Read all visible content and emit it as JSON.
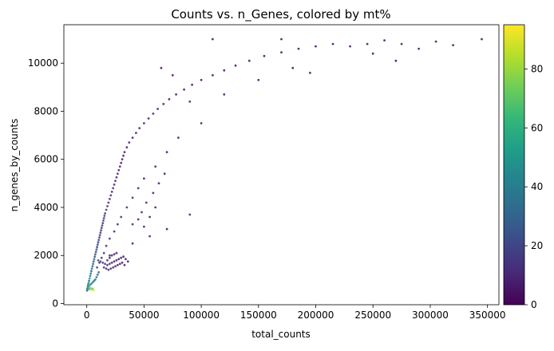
{
  "chart_data": {
    "type": "scatter",
    "title": "Counts vs. n_Genes, colored by mt%",
    "xlabel": "total_counts",
    "ylabel": "n_genes_by_counts",
    "xlim": [
      -20000,
      360000
    ],
    "ylim": [
      -50,
      11600
    ],
    "xticks": [
      0,
      50000,
      100000,
      150000,
      200000,
      250000,
      300000,
      350000
    ],
    "xtick_labels": [
      "0",
      "50000",
      "100000",
      "150000",
      "200000",
      "250000",
      "300000",
      "350000"
    ],
    "yticks": [
      0,
      2000,
      4000,
      6000,
      8000,
      10000
    ],
    "ytick_labels": [
      "0",
      "2000",
      "4000",
      "6000",
      "8000",
      "10000"
    ],
    "colorbar": {
      "label": "",
      "range": [
        0,
        95
      ],
      "ticks": [
        0,
        20,
        40,
        60,
        80
      ],
      "tick_labels": [
        "0",
        "20",
        "40",
        "60",
        "80"
      ],
      "colormap": "viridis",
      "colors": [
        "#440154",
        "#482878",
        "#3e4989",
        "#31688e",
        "#26828e",
        "#1f9e89",
        "#35b779",
        "#6ece58",
        "#b5de2b",
        "#fde725"
      ]
    },
    "grid": false,
    "legend": "none",
    "points": [
      [
        300,
        540,
        30
      ],
      [
        600,
        620,
        25
      ],
      [
        900,
        700,
        38
      ],
      [
        1200,
        780,
        28
      ],
      [
        1600,
        860,
        45
      ],
      [
        2000,
        950,
        32
      ],
      [
        2500,
        1050,
        50
      ],
      [
        3000,
        1150,
        35
      ],
      [
        3500,
        1250,
        40
      ],
      [
        4000,
        1350,
        30
      ],
      [
        4500,
        1450,
        42
      ],
      [
        5000,
        1550,
        28
      ],
      [
        5500,
        1650,
        36
      ],
      [
        6000,
        1750,
        26
      ],
      [
        6500,
        1850,
        33
      ],
      [
        7000,
        1950,
        24
      ],
      [
        7500,
        2050,
        30
      ],
      [
        8000,
        2150,
        22
      ],
      [
        8500,
        2250,
        28
      ],
      [
        9000,
        2350,
        20
      ],
      [
        9500,
        2450,
        25
      ],
      [
        10000,
        2550,
        18
      ],
      [
        10500,
        2650,
        22
      ],
      [
        11000,
        2750,
        17
      ],
      [
        11500,
        2850,
        20
      ],
      [
        12000,
        2950,
        16
      ],
      [
        12500,
        3050,
        18
      ],
      [
        13000,
        3150,
        15
      ],
      [
        13500,
        3250,
        17
      ],
      [
        14000,
        3350,
        14
      ],
      [
        14500,
        3450,
        16
      ],
      [
        15000,
        3550,
        13
      ],
      [
        15500,
        3650,
        15
      ],
      [
        16000,
        3750,
        12
      ],
      [
        17000,
        3900,
        13
      ],
      [
        18000,
        4050,
        12
      ],
      [
        19000,
        4200,
        11
      ],
      [
        20000,
        4350,
        12
      ],
      [
        21000,
        4500,
        11
      ],
      [
        22000,
        4650,
        10
      ],
      [
        23000,
        4800,
        11
      ],
      [
        24000,
        4950,
        10
      ],
      [
        25000,
        5100,
        10
      ],
      [
        26000,
        5250,
        9
      ],
      [
        27000,
        5400,
        10
      ],
      [
        28000,
        5550,
        9
      ],
      [
        29000,
        5700,
        9
      ],
      [
        30000,
        5850,
        9
      ],
      [
        31000,
        6000,
        8
      ],
      [
        32000,
        6150,
        9
      ],
      [
        33000,
        6300,
        8
      ],
      [
        35000,
        6500,
        8
      ],
      [
        37000,
        6700,
        8
      ],
      [
        40000,
        6900,
        7
      ],
      [
        43000,
        7100,
        7
      ],
      [
        46000,
        7300,
        7
      ],
      [
        50000,
        7500,
        7
      ],
      [
        54000,
        7700,
        6
      ],
      [
        58000,
        7900,
        6
      ],
      [
        62000,
        8100,
        6
      ],
      [
        67000,
        8300,
        6
      ],
      [
        72000,
        8500,
        5
      ],
      [
        78000,
        8700,
        5
      ],
      [
        85000,
        8900,
        5
      ],
      [
        92000,
        9100,
        5
      ],
      [
        100000,
        9300,
        5
      ],
      [
        110000,
        9500,
        4
      ],
      [
        120000,
        9700,
        4
      ],
      [
        130000,
        9900,
        4
      ],
      [
        142000,
        10100,
        4
      ],
      [
        155000,
        10300,
        4
      ],
      [
        170000,
        10450,
        3
      ],
      [
        185000,
        10600,
        3
      ],
      [
        200000,
        10700,
        3
      ],
      [
        215000,
        10800,
        3
      ],
      [
        230000,
        10700,
        3
      ],
      [
        245000,
        10800,
        3
      ],
      [
        260000,
        10950,
        3
      ],
      [
        275000,
        10800,
        3
      ],
      [
        290000,
        10600,
        3
      ],
      [
        305000,
        10900,
        2
      ],
      [
        320000,
        10750,
        2
      ],
      [
        345000,
        11000,
        2
      ],
      [
        110000,
        11000,
        3
      ],
      [
        170000,
        11000,
        3
      ],
      [
        250000,
        10400,
        3
      ],
      [
        270000,
        10100,
        3
      ],
      [
        150000,
        9300,
        4
      ],
      [
        180000,
        9800,
        3
      ],
      [
        195000,
        9600,
        3
      ],
      [
        90000,
        8400,
        5
      ],
      [
        75000,
        9500,
        5
      ],
      [
        65000,
        9800,
        5
      ],
      [
        120000,
        8700,
        4
      ],
      [
        100000,
        7500,
        5
      ],
      [
        80000,
        6900,
        6
      ],
      [
        70000,
        6300,
        6
      ],
      [
        60000,
        5700,
        7
      ],
      [
        50000,
        5200,
        7
      ],
      [
        45000,
        4800,
        8
      ],
      [
        40000,
        4400,
        8
      ],
      [
        35000,
        4000,
        9
      ],
      [
        30000,
        3600,
        10
      ],
      [
        27000,
        3300,
        10
      ],
      [
        24000,
        3000,
        11
      ],
      [
        20000,
        2700,
        12
      ],
      [
        17000,
        2400,
        13
      ],
      [
        15000,
        2100,
        14
      ],
      [
        13000,
        1900,
        15
      ],
      [
        11000,
        1700,
        16
      ],
      [
        9000,
        1500,
        18
      ],
      [
        10000,
        1800,
        20
      ],
      [
        12000,
        1750,
        18
      ],
      [
        14000,
        1700,
        16
      ],
      [
        16000,
        1650,
        14
      ],
      [
        18000,
        1600,
        12
      ],
      [
        20000,
        1650,
        10
      ],
      [
        22000,
        1700,
        9
      ],
      [
        24000,
        1750,
        8
      ],
      [
        26000,
        1800,
        8
      ],
      [
        28000,
        1850,
        7
      ],
      [
        30000,
        1900,
        7
      ],
      [
        32000,
        1950,
        6
      ],
      [
        34000,
        1850,
        6
      ],
      [
        36000,
        1750,
        6
      ],
      [
        18000,
        1800,
        12
      ],
      [
        20000,
        1900,
        11
      ],
      [
        22000,
        2000,
        10
      ],
      [
        24000,
        2050,
        9
      ],
      [
        26000,
        2100,
        9
      ],
      [
        15000,
        1500,
        15
      ],
      [
        17000,
        1450,
        14
      ],
      [
        19000,
        1400,
        13
      ],
      [
        21000,
        1450,
        12
      ],
      [
        23000,
        1500,
        11
      ],
      [
        25000,
        1550,
        10
      ],
      [
        27000,
        1600,
        9
      ],
      [
        29000,
        1650,
        8
      ],
      [
        31000,
        1700,
        8
      ],
      [
        33000,
        1600,
        7
      ],
      [
        2000,
        600,
        60
      ],
      [
        3000,
        650,
        75
      ],
      [
        4000,
        580,
        85
      ],
      [
        5000,
        620,
        70
      ],
      [
        6000,
        560,
        90
      ],
      [
        1500,
        700,
        55
      ],
      [
        2500,
        750,
        65
      ],
      [
        3500,
        800,
        50
      ],
      [
        4500,
        850,
        48
      ],
      [
        5500,
        900,
        45
      ],
      [
        6500,
        950,
        40
      ],
      [
        7500,
        1000,
        38
      ],
      [
        8500,
        1100,
        35
      ],
      [
        9500,
        1200,
        30
      ],
      [
        10500,
        1300,
        28
      ],
      [
        40000,
        3300,
        8
      ],
      [
        45000,
        3500,
        7
      ],
      [
        50000,
        3200,
        7
      ],
      [
        55000,
        3600,
        6
      ],
      [
        60000,
        4000,
        6
      ],
      [
        48000,
        3800,
        7
      ],
      [
        52000,
        4200,
        7
      ],
      [
        58000,
        4600,
        6
      ],
      [
        63000,
        5000,
        6
      ],
      [
        68000,
        5400,
        5
      ],
      [
        20000,
        2000,
        12
      ],
      [
        40000,
        2500,
        8
      ],
      [
        55000,
        2800,
        6
      ],
      [
        70000,
        3100,
        5
      ],
      [
        90000,
        3700,
        5
      ]
    ]
  }
}
